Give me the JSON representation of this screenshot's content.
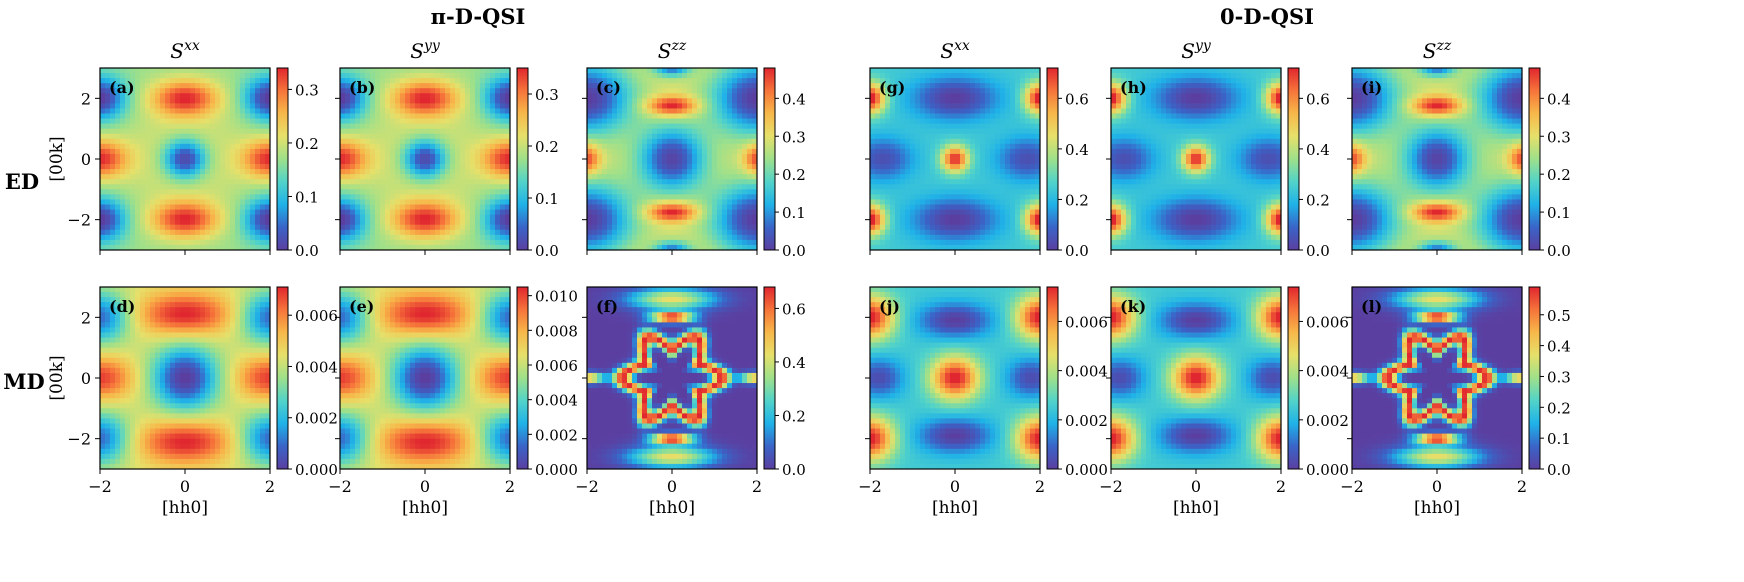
{
  "figure": {
    "group_titles": [
      "π-D-QSI",
      "0-D-QSI"
    ],
    "row_labels": [
      "ED",
      "MD"
    ],
    "column_titles": [
      {
        "base": "S",
        "sup": "xx"
      },
      {
        "base": "S",
        "sup": "yy"
      },
      {
        "base": "S",
        "sup": "zz"
      },
      {
        "base": "S",
        "sup": "xx"
      },
      {
        "base": "S",
        "sup": "yy"
      },
      {
        "base": "S",
        "sup": "zz"
      }
    ],
    "xlabel": "[hh0]",
    "ylabel": "[00k]",
    "colormap": [
      "#5b3fa0",
      "#3a64c8",
      "#1fb2e8",
      "#52d3c9",
      "#9ee08a",
      "#e6e06a",
      "#f7b84a",
      "#f6743a",
      "#e0262f"
    ]
  },
  "chart_data": [
    {
      "panel": "(a)",
      "type": "heatmap",
      "row": "ED",
      "group": "π-D-QSI",
      "component": "Sxx",
      "pattern": "pi_xx",
      "xlim": [
        -2,
        2
      ],
      "ylim": [
        -3,
        3
      ],
      "xticks": [
        -2,
        0,
        2
      ],
      "yticks": [
        -2,
        0,
        2
      ],
      "cbar_range": [
        0.0,
        0.34
      ],
      "cbar_ticks": [
        "0.0",
        "0.1",
        "0.2",
        "0.3"
      ],
      "cbar_values": [
        0.0,
        0.1,
        0.2,
        0.3
      ]
    },
    {
      "panel": "(b)",
      "type": "heatmap",
      "row": "ED",
      "group": "π-D-QSI",
      "component": "Syy",
      "pattern": "pi_xx",
      "xlim": [
        -2,
        2
      ],
      "ylim": [
        -3,
        3
      ],
      "xticks": [
        -2,
        0,
        2
      ],
      "yticks": [
        -2,
        0,
        2
      ],
      "cbar_range": [
        0.0,
        0.35
      ],
      "cbar_ticks": [
        "0.0",
        "0.1",
        "0.2",
        "0.3"
      ],
      "cbar_values": [
        0.0,
        0.1,
        0.2,
        0.3
      ]
    },
    {
      "panel": "(c)",
      "type": "heatmap",
      "row": "ED",
      "group": "π-D-QSI",
      "component": "Szz",
      "pattern": "zz_ed",
      "xlim": [
        -2,
        2
      ],
      "ylim": [
        -3,
        3
      ],
      "xticks": [
        -2,
        0,
        2
      ],
      "yticks": [
        -2,
        0,
        2
      ],
      "cbar_range": [
        0.0,
        0.48
      ],
      "cbar_ticks": [
        "0.0",
        "0.1",
        "0.2",
        "0.3",
        "0.4"
      ],
      "cbar_values": [
        0.0,
        0.1,
        0.2,
        0.3,
        0.4
      ]
    },
    {
      "panel": "(g)",
      "type": "heatmap",
      "row": "ED",
      "group": "0-D-QSI",
      "component": "Sxx",
      "pattern": "zero_xx_ed",
      "xlim": [
        -2,
        2
      ],
      "ylim": [
        -3,
        3
      ],
      "xticks": [
        -2,
        0,
        2
      ],
      "yticks": [
        -2,
        0,
        2
      ],
      "cbar_range": [
        0.0,
        0.72
      ],
      "cbar_ticks": [
        "0.0",
        "0.2",
        "0.4",
        "0.6"
      ],
      "cbar_values": [
        0.0,
        0.2,
        0.4,
        0.6
      ]
    },
    {
      "panel": "(h)",
      "type": "heatmap",
      "row": "ED",
      "group": "0-D-QSI",
      "component": "Syy",
      "pattern": "zero_xx_ed",
      "xlim": [
        -2,
        2
      ],
      "ylim": [
        -3,
        3
      ],
      "xticks": [
        -2,
        0,
        2
      ],
      "yticks": [
        -2,
        0,
        2
      ],
      "cbar_range": [
        0.0,
        0.72
      ],
      "cbar_ticks": [
        "0.0",
        "0.2",
        "0.4",
        "0.6"
      ],
      "cbar_values": [
        0.0,
        0.2,
        0.4,
        0.6
      ]
    },
    {
      "panel": "(i)",
      "type": "heatmap",
      "row": "ED",
      "group": "0-D-QSI",
      "component": "Szz",
      "pattern": "zz_ed",
      "xlim": [
        -2,
        2
      ],
      "ylim": [
        -3,
        3
      ],
      "xticks": [
        -2,
        0,
        2
      ],
      "yticks": [
        -2,
        0,
        2
      ],
      "cbar_range": [
        0.0,
        0.48
      ],
      "cbar_ticks": [
        "0.0",
        "0.1",
        "0.2",
        "0.3",
        "0.4"
      ],
      "cbar_values": [
        0.0,
        0.1,
        0.2,
        0.3,
        0.4
      ]
    },
    {
      "panel": "(d)",
      "type": "heatmap",
      "row": "MD",
      "group": "π-D-QSI",
      "component": "Sxx",
      "pattern": "pi_md",
      "xlim": [
        -2,
        2
      ],
      "ylim": [
        -3,
        3
      ],
      "xticks": [
        -2,
        0,
        2
      ],
      "yticks": [
        -2,
        0,
        2
      ],
      "cbar_range": [
        0.0,
        0.0071
      ],
      "cbar_ticks": [
        "0.000",
        "0.002",
        "0.004",
        "0.006"
      ],
      "cbar_values": [
        0.0,
        0.002,
        0.004,
        0.006
      ]
    },
    {
      "panel": "(e)",
      "type": "heatmap",
      "row": "MD",
      "group": "π-D-QSI",
      "component": "Syy",
      "pattern": "pi_md",
      "xlim": [
        -2,
        2
      ],
      "ylim": [
        -3,
        3
      ],
      "xticks": [
        -2,
        0,
        2
      ],
      "yticks": [
        -2,
        0,
        2
      ],
      "cbar_range": [
        0.0,
        0.0105
      ],
      "cbar_ticks": [
        "0.000",
        "0.002",
        "0.004",
        "0.006",
        "0.008",
        "0.010"
      ],
      "cbar_values": [
        0.0,
        0.002,
        0.004,
        0.006,
        0.008,
        0.01
      ]
    },
    {
      "panel": "(f)",
      "type": "heatmap",
      "row": "MD",
      "group": "π-D-QSI",
      "component": "Szz",
      "pattern": "zz_md",
      "xlim": [
        -2,
        2
      ],
      "ylim": [
        -3,
        3
      ],
      "xticks": [
        -2,
        0,
        2
      ],
      "yticks": [
        -2,
        0,
        2
      ],
      "cbar_range": [
        0.0,
        0.68
      ],
      "cbar_ticks": [
        "0.0",
        "0.2",
        "0.4",
        "0.6"
      ],
      "cbar_values": [
        0.0,
        0.2,
        0.4,
        0.6
      ]
    },
    {
      "panel": "(j)",
      "type": "heatmap",
      "row": "MD",
      "group": "0-D-QSI",
      "component": "Sxx",
      "pattern": "zero_md",
      "xlim": [
        -2,
        2
      ],
      "ylim": [
        -3,
        3
      ],
      "xticks": [
        -2,
        0,
        2
      ],
      "yticks": [
        -2,
        0,
        2
      ],
      "cbar_range": [
        0.0,
        0.0074
      ],
      "cbar_ticks": [
        "0.000",
        "0.002",
        "0.004",
        "0.006"
      ],
      "cbar_values": [
        0.0,
        0.002,
        0.004,
        0.006
      ]
    },
    {
      "panel": "(k)",
      "type": "heatmap",
      "row": "MD",
      "group": "0-D-QSI",
      "component": "Syy",
      "pattern": "zero_md",
      "xlim": [
        -2,
        2
      ],
      "ylim": [
        -3,
        3
      ],
      "xticks": [
        -2,
        0,
        2
      ],
      "yticks": [
        -2,
        0,
        2
      ],
      "cbar_range": [
        0.0,
        0.0074
      ],
      "cbar_ticks": [
        "0.000",
        "0.002",
        "0.004",
        "0.006"
      ],
      "cbar_values": [
        0.0,
        0.002,
        0.004,
        0.006
      ]
    },
    {
      "panel": "(l)",
      "type": "heatmap",
      "row": "MD",
      "group": "0-D-QSI",
      "component": "Szz",
      "pattern": "zz_md",
      "xlim": [
        -2,
        2
      ],
      "ylim": [
        -3,
        3
      ],
      "xticks": [
        -2,
        0,
        2
      ],
      "yticks": [
        -2,
        0,
        2
      ],
      "cbar_range": [
        0.0,
        0.59
      ],
      "cbar_ticks": [
        "0.0",
        "0.1",
        "0.2",
        "0.3",
        "0.4",
        "0.5"
      ],
      "cbar_values": [
        0.0,
        0.1,
        0.2,
        0.3,
        0.4,
        0.5
      ]
    }
  ]
}
